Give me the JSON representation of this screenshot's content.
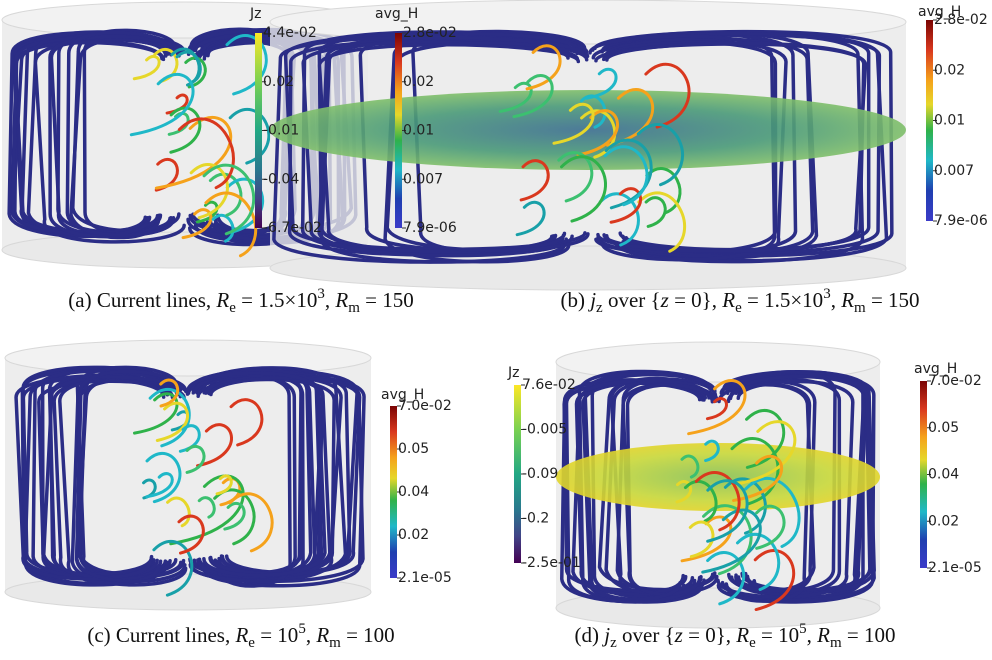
{
  "panels": [
    {
      "caption": [
        {
          "text": "(a) Current lines, ",
          "style": "normal"
        },
        {
          "text": "R",
          "style": "italic"
        },
        {
          "text": "e",
          "style": "sub"
        },
        {
          "text": " = 1.5×10",
          "style": "normal"
        },
        {
          "text": "3",
          "style": "sup"
        },
        {
          "text": ", ",
          "style": "normal"
        },
        {
          "text": "R",
          "style": "italic"
        },
        {
          "text": "m",
          "style": "sub"
        },
        {
          "text": " = 150",
          "style": "normal"
        }
      ],
      "colorbars": [
        {
          "title": "avg_H",
          "labels": [
            "2.8e-02",
            "0.02",
            "0.01",
            "0.007",
            "7.9e-06"
          ]
        }
      ]
    },
    {
      "caption": [
        {
          "text": "(b) ",
          "style": "normal"
        },
        {
          "text": "j",
          "style": "italic"
        },
        {
          "text": "z",
          "style": "sub"
        },
        {
          "text": " over {",
          "style": "normal"
        },
        {
          "text": "z",
          "style": "italic"
        },
        {
          "text": " = 0}, ",
          "style": "normal"
        },
        {
          "text": "R",
          "style": "italic"
        },
        {
          "text": "e",
          "style": "sub"
        },
        {
          "text": " = 1.5×10",
          "style": "normal"
        },
        {
          "text": "3",
          "style": "sup"
        },
        {
          "text": ", ",
          "style": "normal"
        },
        {
          "text": "R",
          "style": "italic"
        },
        {
          "text": "m",
          "style": "sub"
        },
        {
          "text": " = 150",
          "style": "normal"
        }
      ],
      "colorbars": [
        {
          "title": "Jz",
          "labels": [
            "4.4e-02",
            "0.02",
            "-0.01",
            "-0.04",
            "-6.7e-02"
          ]
        },
        {
          "title": "avg_H",
          "labels": [
            "2.8e-02",
            "0.02",
            "0.01",
            "0.007",
            "7.9e-06"
          ]
        }
      ]
    },
    {
      "caption": [
        {
          "text": "(c) Current lines, ",
          "style": "normal"
        },
        {
          "text": "R",
          "style": "italic"
        },
        {
          "text": "e",
          "style": "sub"
        },
        {
          "text": " = 10",
          "style": "normal"
        },
        {
          "text": "5",
          "style": "sup"
        },
        {
          "text": ", ",
          "style": "normal"
        },
        {
          "text": "R",
          "style": "italic"
        },
        {
          "text": "m",
          "style": "sub"
        },
        {
          "text": " = 100",
          "style": "normal"
        }
      ],
      "colorbars": [
        {
          "title": "avg_H",
          "labels": [
            "7.0e-02",
            "0.05",
            "0.04",
            "0.02",
            "2.1e-05"
          ]
        }
      ]
    },
    {
      "caption": [
        {
          "text": "(d) ",
          "style": "normal"
        },
        {
          "text": "j",
          "style": "italic"
        },
        {
          "text": "z",
          "style": "sub"
        },
        {
          "text": " over {",
          "style": "normal"
        },
        {
          "text": "z",
          "style": "italic"
        },
        {
          "text": " = 0}, ",
          "style": "normal"
        },
        {
          "text": "R",
          "style": "italic"
        },
        {
          "text": "e",
          "style": "sub"
        },
        {
          "text": " = 10",
          "style": "normal"
        },
        {
          "text": "5",
          "style": "sup"
        },
        {
          "text": ", ",
          "style": "normal"
        },
        {
          "text": "R",
          "style": "italic"
        },
        {
          "text": "m",
          "style": "sub"
        },
        {
          "text": " = 100",
          "style": "normal"
        }
      ],
      "colorbars": [
        {
          "title": "Jz",
          "labels": [
            "7.6e-02",
            "-0.005",
            "-0.09",
            "-0.2",
            "-2.5e-01"
          ]
        },
        {
          "title": "avg_H",
          "labels": [
            "7.0e-02",
            "0.05",
            "0.04",
            "0.02",
            "2.1e-05"
          ]
        }
      ]
    }
  ]
}
